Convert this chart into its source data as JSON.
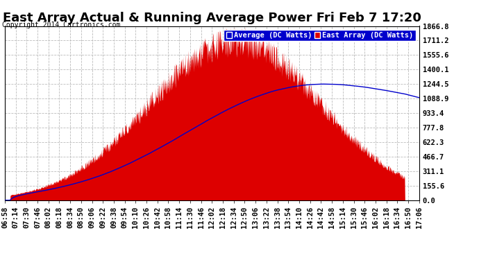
{
  "title": "East Array Actual & Running Average Power Fri Feb 7 17:20",
  "copyright": "Copyright 2014 Cartronics.com",
  "legend_labels": [
    "Average (DC Watts)",
    "East Array (DC Watts)"
  ],
  "legend_colors": [
    "#0000cc",
    "#cc0000"
  ],
  "background_color": "#ffffff",
  "plot_bg_color": "#ffffff",
  "grid_color": "#bbbbbb",
  "yticks": [
    0.0,
    155.6,
    311.1,
    466.7,
    622.3,
    777.8,
    933.4,
    1088.9,
    1244.5,
    1400.1,
    1555.6,
    1711.2,
    1866.8
  ],
  "ymax": 1866.8,
  "xtick_labels": [
    "06:58",
    "07:14",
    "07:30",
    "07:46",
    "08:02",
    "08:18",
    "08:34",
    "08:50",
    "09:06",
    "09:22",
    "09:38",
    "09:54",
    "10:10",
    "10:26",
    "10:42",
    "10:58",
    "11:14",
    "11:30",
    "11:46",
    "12:02",
    "12:18",
    "12:34",
    "12:50",
    "13:06",
    "13:22",
    "13:38",
    "13:54",
    "14:10",
    "14:26",
    "14:42",
    "14:58",
    "15:14",
    "15:30",
    "15:46",
    "16:02",
    "16:18",
    "16:34",
    "16:50",
    "17:06"
  ],
  "title_fontsize": 13,
  "axis_fontsize": 7.5,
  "copyright_fontsize": 7,
  "peak_hour": 12.6,
  "sigma": 2.1,
  "sunrise_hour": 7.1,
  "sunset_hour": 16.75,
  "avg_peak_value": 1244.5,
  "avg_peak_hour": 14.5,
  "east_max": 1866.8
}
